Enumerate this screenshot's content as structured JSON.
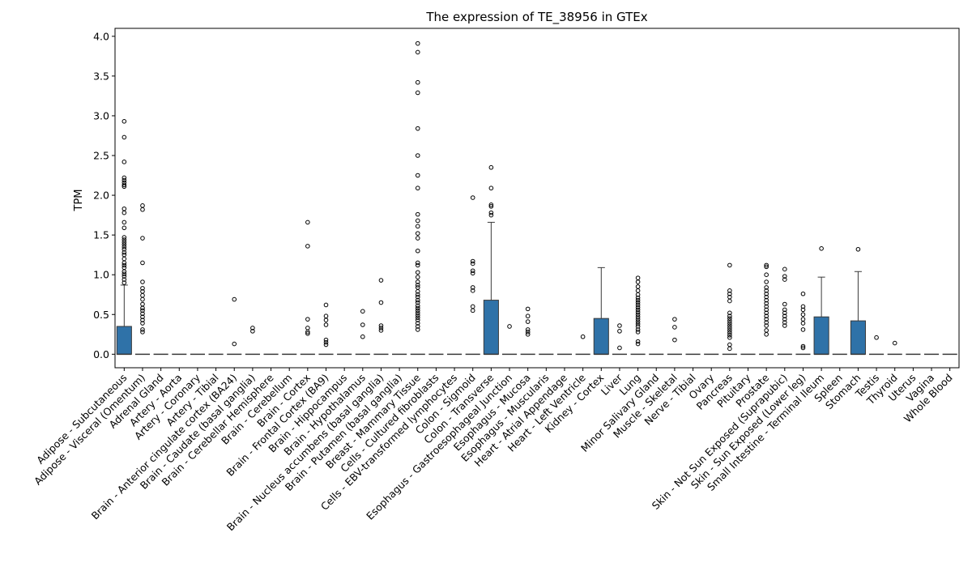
{
  "chart_data": {
    "type": "box",
    "title": "The expression of TE_38956 in GTEx",
    "xlabel": "",
    "ylabel": "TPM",
    "ylim": [
      -0.17,
      4.1
    ],
    "yticks": [
      "0.0",
      "0.5",
      "1.0",
      "1.5",
      "2.0",
      "2.5",
      "3.0",
      "3.5",
      "4.0"
    ],
    "box_color": "#2f72a8",
    "grid": false,
    "categories": [
      "Adipose - Subcutaneous",
      "Adipose - Visceral (Omentum)",
      "Adrenal Gland",
      "Artery - Aorta",
      "Artery - Coronary",
      "Artery - Tibial",
      "Brain - Anterior cingulate cortex (BA24)",
      "Brain - Caudate (basal ganglia)",
      "Brain - Cerebellar Hemisphere",
      "Brain - Cerebellum",
      "Brain - Cortex",
      "Brain - Frontal Cortex (BA9)",
      "Brain - Hippocampus",
      "Brain - Hypothalamus",
      "Brain - Nucleus accumbens (basal ganglia)",
      "Brain - Putamen (basal ganglia)",
      "Breast - Mammary Tissue",
      "Cells - Cultured fibroblasts",
      "Cells - EBV-transformed lymphocytes",
      "Colon - Sigmoid",
      "Colon - Transverse",
      "Esophagus - Gastroesophageal Junction",
      "Esophagus - Mucosa",
      "Esophagus - Muscularis",
      "Heart - Atrial Appendage",
      "Heart - Left Ventricle",
      "Kidney - Cortex",
      "Liver",
      "Lung",
      "Minor Salivary Gland",
      "Muscle - Skeletal",
      "Nerve - Tibial",
      "Ovary",
      "Pancreas",
      "Pituitary",
      "Prostate",
      "Skin - Not Sun Exposed (Suprapubic)",
      "Skin - Sun Exposed (Lower leg)",
      "Small Intestine - Terminal Ileum",
      "Spleen",
      "Stomach",
      "Testis",
      "Thyroid",
      "Uterus",
      "Vagina",
      "Whole Blood"
    ],
    "boxes": [
      {
        "q1": 0,
        "median": 0,
        "q3": 0.35,
        "whisker_low": 0,
        "whisker_high": 0.87,
        "outliers": [
          2.93,
          2.73,
          2.42,
          2.22,
          2.19,
          2.16,
          2.13,
          2.11,
          1.83,
          1.78,
          1.66,
          1.59,
          1.47,
          1.44,
          1.41,
          1.38,
          1.35,
          1.32,
          1.28,
          1.25,
          1.2,
          1.15,
          1.12,
          1.09,
          1.04,
          1.01,
          0.98,
          0.94,
          0.9
        ]
      },
      {
        "q1": 0,
        "median": 0,
        "q3": 0,
        "whisker_low": 0,
        "whisker_high": 0,
        "outliers": [
          1.87,
          1.82,
          1.46,
          1.15,
          0.91,
          0.83,
          0.79,
          0.74,
          0.69,
          0.63,
          0.58,
          0.55,
          0.51,
          0.47,
          0.43,
          0.39,
          0.31,
          0.28
        ]
      },
      {
        "q1": 0,
        "median": 0,
        "q3": 0,
        "whisker_low": 0,
        "whisker_high": 0,
        "outliers": []
      },
      {
        "q1": 0,
        "median": 0,
        "q3": 0,
        "whisker_low": 0,
        "whisker_high": 0,
        "outliers": []
      },
      {
        "q1": 0,
        "median": 0,
        "q3": 0,
        "whisker_low": 0,
        "whisker_high": 0,
        "outliers": []
      },
      {
        "q1": 0,
        "median": 0,
        "q3": 0,
        "whisker_low": 0,
        "whisker_high": 0,
        "outliers": []
      },
      {
        "q1": 0,
        "median": 0,
        "q3": 0,
        "whisker_low": 0,
        "whisker_high": 0,
        "outliers": [
          0.69,
          0.13
        ]
      },
      {
        "q1": 0,
        "median": 0,
        "q3": 0,
        "whisker_low": 0,
        "whisker_high": 0,
        "outliers": [
          0.33,
          0.29
        ]
      },
      {
        "q1": 0,
        "median": 0,
        "q3": 0,
        "whisker_low": 0,
        "whisker_high": 0,
        "outliers": []
      },
      {
        "q1": 0,
        "median": 0,
        "q3": 0,
        "whisker_low": 0,
        "whisker_high": 0,
        "outliers": []
      },
      {
        "q1": 0,
        "median": 0,
        "q3": 0,
        "whisker_low": 0,
        "whisker_high": 0,
        "outliers": [
          1.66,
          1.36,
          0.44,
          0.33,
          0.28,
          0.26
        ]
      },
      {
        "q1": 0,
        "median": 0,
        "q3": 0,
        "whisker_low": 0,
        "whisker_high": 0,
        "outliers": [
          0.62,
          0.48,
          0.43,
          0.37,
          0.18,
          0.15,
          0.12
        ]
      },
      {
        "q1": 0,
        "median": 0,
        "q3": 0,
        "whisker_low": 0,
        "whisker_high": 0,
        "outliers": []
      },
      {
        "q1": 0,
        "median": 0,
        "q3": 0,
        "whisker_low": 0,
        "whisker_high": 0,
        "outliers": [
          0.54,
          0.37,
          0.22
        ]
      },
      {
        "q1": 0,
        "median": 0,
        "q3": 0,
        "whisker_low": 0,
        "whisker_high": 0,
        "outliers": [
          0.93,
          0.65,
          0.36,
          0.33,
          0.3
        ]
      },
      {
        "q1": 0,
        "median": 0,
        "q3": 0,
        "whisker_low": 0,
        "whisker_high": 0,
        "outliers": []
      },
      {
        "q1": 0,
        "median": 0,
        "q3": 0,
        "whisker_low": 0,
        "whisker_high": 0,
        "outliers": [
          3.91,
          3.8,
          3.42,
          3.29,
          2.84,
          2.5,
          2.25,
          2.09,
          1.76,
          1.68,
          1.61,
          1.52,
          1.46,
          1.3,
          1.15,
          1.12,
          1.03,
          0.97,
          0.91,
          0.87,
          0.84,
          0.79,
          0.75,
          0.72,
          0.68,
          0.65,
          0.61,
          0.58,
          0.55,
          0.52,
          0.49,
          0.46,
          0.43,
          0.39,
          0.35,
          0.31
        ]
      },
      {
        "q1": 0,
        "median": 0,
        "q3": 0,
        "whisker_low": 0,
        "whisker_high": 0,
        "outliers": []
      },
      {
        "q1": 0,
        "median": 0,
        "q3": 0,
        "whisker_low": 0,
        "whisker_high": 0,
        "outliers": []
      },
      {
        "q1": 0,
        "median": 0,
        "q3": 0,
        "whisker_low": 0,
        "whisker_high": 0,
        "outliers": [
          1.97,
          1.17,
          1.14,
          1.05,
          1.02,
          0.84,
          0.8,
          0.6,
          0.55
        ]
      },
      {
        "q1": 0,
        "median": 0,
        "q3": 0.68,
        "whisker_low": 0,
        "whisker_high": 1.66,
        "outliers": [
          2.35,
          2.09,
          1.88,
          1.86,
          1.78,
          1.75
        ]
      },
      {
        "q1": 0,
        "median": 0,
        "q3": 0,
        "whisker_low": 0,
        "whisker_high": 0,
        "outliers": [
          0.35
        ]
      },
      {
        "q1": 0,
        "median": 0,
        "q3": 0,
        "whisker_low": 0,
        "whisker_high": 0,
        "outliers": [
          0.57,
          0.48,
          0.41,
          0.31,
          0.28,
          0.25
        ]
      },
      {
        "q1": 0,
        "median": 0,
        "q3": 0,
        "whisker_low": 0,
        "whisker_high": 0,
        "outliers": []
      },
      {
        "q1": 0,
        "median": 0,
        "q3": 0,
        "whisker_low": 0,
        "whisker_high": 0,
        "outliers": []
      },
      {
        "q1": 0,
        "median": 0,
        "q3": 0,
        "whisker_low": 0,
        "whisker_high": 0,
        "outliers": [
          0.22
        ]
      },
      {
        "q1": 0,
        "median": 0,
        "q3": 0.45,
        "whisker_low": 0,
        "whisker_high": 1.09,
        "outliers": []
      },
      {
        "q1": 0,
        "median": 0,
        "q3": 0,
        "whisker_low": 0,
        "whisker_high": 0,
        "outliers": [
          0.36,
          0.29,
          0.08
        ]
      },
      {
        "q1": 0,
        "median": 0,
        "q3": 0,
        "whisker_low": 0,
        "whisker_high": 0,
        "outliers": [
          0.96,
          0.91,
          0.85,
          0.8,
          0.75,
          0.71,
          0.68,
          0.65,
          0.62,
          0.59,
          0.56,
          0.53,
          0.5,
          0.47,
          0.44,
          0.41,
          0.38,
          0.35,
          0.31,
          0.28,
          0.16,
          0.13
        ]
      },
      {
        "q1": 0,
        "median": 0,
        "q3": 0,
        "whisker_low": 0,
        "whisker_high": 0,
        "outliers": []
      },
      {
        "q1": 0,
        "median": 0,
        "q3": 0,
        "whisker_low": 0,
        "whisker_high": 0,
        "outliers": [
          0.44,
          0.34,
          0.18
        ]
      },
      {
        "q1": 0,
        "median": 0,
        "q3": 0,
        "whisker_low": 0,
        "whisker_high": 0,
        "outliers": []
      },
      {
        "q1": 0,
        "median": 0,
        "q3": 0,
        "whisker_low": 0,
        "whisker_high": 0,
        "outliers": []
      },
      {
        "q1": 0,
        "median": 0,
        "q3": 0,
        "whisker_low": 0,
        "whisker_high": 0,
        "outliers": [
          1.12,
          0.8,
          0.76,
          0.72,
          0.67,
          0.52,
          0.48,
          0.45,
          0.42,
          0.39,
          0.36,
          0.33,
          0.3,
          0.27,
          0.24,
          0.21,
          0.12,
          0.07
        ]
      },
      {
        "q1": 0,
        "median": 0,
        "q3": 0,
        "whisker_low": 0,
        "whisker_high": 0,
        "outliers": []
      },
      {
        "q1": 0,
        "median": 0,
        "q3": 0,
        "whisker_low": 0,
        "whisker_high": 0,
        "outliers": [
          1.12,
          1.1,
          1.0,
          0.91,
          0.84,
          0.8,
          0.76,
          0.72,
          0.68,
          0.64,
          0.6,
          0.56,
          0.52,
          0.48,
          0.44,
          0.4,
          0.36,
          0.3,
          0.25
        ]
      },
      {
        "q1": 0,
        "median": 0,
        "q3": 0,
        "whisker_low": 0,
        "whisker_high": 0,
        "outliers": [
          1.07,
          0.98,
          0.94,
          0.63,
          0.56,
          0.52,
          0.48,
          0.44,
          0.4,
          0.36
        ]
      },
      {
        "q1": 0,
        "median": 0,
        "q3": 0,
        "whisker_low": 0,
        "whisker_high": 0,
        "outliers": [
          0.76,
          0.6,
          0.56,
          0.5,
          0.44,
          0.39,
          0.31,
          0.1,
          0.08
        ]
      },
      {
        "q1": 0,
        "median": 0,
        "q3": 0.47,
        "whisker_low": 0,
        "whisker_high": 0.97,
        "outliers": [
          1.33
        ]
      },
      {
        "q1": 0,
        "median": 0,
        "q3": 0,
        "whisker_low": 0,
        "whisker_high": 0,
        "outliers": []
      },
      {
        "q1": 0,
        "median": 0,
        "q3": 0.42,
        "whisker_low": 0,
        "whisker_high": 1.04,
        "outliers": [
          1.32
        ]
      },
      {
        "q1": 0,
        "median": 0,
        "q3": 0,
        "whisker_low": 0,
        "whisker_high": 0,
        "outliers": [
          0.21
        ]
      },
      {
        "q1": 0,
        "median": 0,
        "q3": 0,
        "whisker_low": 0,
        "whisker_high": 0,
        "outliers": [
          0.14
        ]
      },
      {
        "q1": 0,
        "median": 0,
        "q3": 0,
        "whisker_low": 0,
        "whisker_high": 0,
        "outliers": []
      },
      {
        "q1": 0,
        "median": 0,
        "q3": 0,
        "whisker_low": 0,
        "whisker_high": 0,
        "outliers": []
      },
      {
        "q1": 0,
        "median": 0,
        "q3": 0,
        "whisker_low": 0,
        "whisker_high": 0,
        "outliers": []
      }
    ]
  }
}
